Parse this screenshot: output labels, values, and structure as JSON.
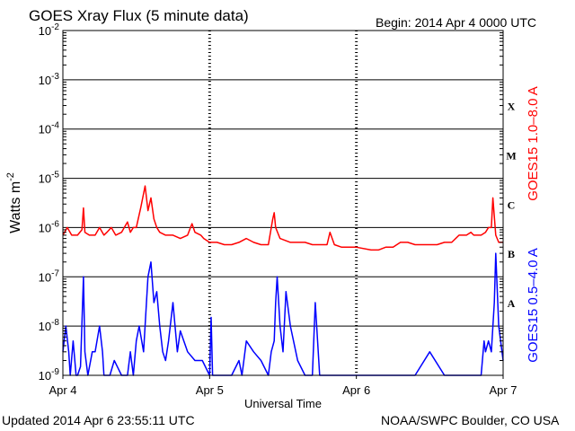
{
  "header": {
    "title": "GOES Xray Flux (5 minute data)",
    "begin": "Begin:  2014 Apr 4 0000 UTC"
  },
  "footer": {
    "updated": "Updated 2014 Apr  6 23:55:11 UTC",
    "credit": "NOAA/SWPC Boulder, CO USA"
  },
  "colors": {
    "long": "#ff0000",
    "short": "#0000ff",
    "axis": "#000000"
  },
  "chart_data": {
    "type": "line",
    "title": "GOES Xray Flux (5 minute data)",
    "ylabel": "Watts m",
    "ylabel_sup": "-2",
    "xlabel": "Universal Time",
    "yscale": "log",
    "ylim": [
      1e-09,
      0.01
    ],
    "xlim": [
      0,
      3
    ],
    "x_unit": "days since 2014 Apr 4 0000 UTC",
    "yticks": [
      {
        "v": 0.01,
        "base": "10",
        "exp": "-2"
      },
      {
        "v": 0.001,
        "base": "10",
        "exp": "-3"
      },
      {
        "v": 0.0001,
        "base": "10",
        "exp": "-4"
      },
      {
        "v": 1e-05,
        "base": "10",
        "exp": "-5"
      },
      {
        "v": 1e-06,
        "base": "10",
        "exp": "-6"
      },
      {
        "v": 1e-07,
        "base": "10",
        "exp": "-7"
      },
      {
        "v": 1e-08,
        "base": "10",
        "exp": "-8"
      },
      {
        "v": 1e-09,
        "base": "10",
        "exp": "-9"
      }
    ],
    "xticks": [
      {
        "x": 0,
        "label": "Apr 4"
      },
      {
        "x": 1,
        "label": "Apr 5"
      },
      {
        "x": 2,
        "label": "Apr 6"
      },
      {
        "x": 3,
        "label": "Apr 7"
      }
    ],
    "flare_classes": [
      {
        "label": "X",
        "v": 0.0003
      },
      {
        "label": "M",
        "v": 3e-05
      },
      {
        "label": "C",
        "v": 3e-06
      },
      {
        "label": "B",
        "v": 3e-07
      },
      {
        "label": "A",
        "v": 3e-08
      }
    ],
    "series": [
      {
        "name": "GOES15 1.0–8.0 A",
        "color": "#ff0000",
        "x": [
          0,
          0.03,
          0.06,
          0.1,
          0.13,
          0.14,
          0.15,
          0.18,
          0.22,
          0.25,
          0.28,
          0.3,
          0.33,
          0.36,
          0.4,
          0.44,
          0.46,
          0.48,
          0.5,
          0.53,
          0.56,
          0.58,
          0.6,
          0.62,
          0.64,
          0.66,
          0.7,
          0.75,
          0.8,
          0.85,
          0.88,
          0.9,
          0.94,
          0.96,
          1.0,
          1.05,
          1.1,
          1.15,
          1.2,
          1.25,
          1.3,
          1.35,
          1.4,
          1.43,
          1.44,
          1.45,
          1.48,
          1.55,
          1.6,
          1.65,
          1.7,
          1.75,
          1.8,
          1.82,
          1.85,
          1.9,
          2.0,
          2.1,
          2.15,
          2.2,
          2.25,
          2.3,
          2.35,
          2.4,
          2.45,
          2.5,
          2.55,
          2.6,
          2.65,
          2.7,
          2.75,
          2.78,
          2.8,
          2.85,
          2.88,
          2.9,
          2.92,
          2.93,
          2.95,
          2.97,
          3.0
        ],
        "y": [
          7e-07,
          1e-06,
          7e-07,
          7e-07,
          9e-07,
          2.5e-06,
          8e-07,
          7e-07,
          7e-07,
          1e-06,
          7e-07,
          8e-07,
          1e-06,
          7e-07,
          8e-07,
          1.3e-06,
          8e-07,
          1e-06,
          1e-06,
          2.5e-06,
          7e-06,
          2.2e-06,
          4e-06,
          1.5e-06,
          1e-06,
          8e-07,
          7e-07,
          7e-07,
          6e-07,
          7e-07,
          1.2e-06,
          8e-07,
          7e-07,
          6e-07,
          5e-07,
          5e-07,
          4.5e-07,
          4.5e-07,
          5e-07,
          6e-07,
          5e-07,
          4.5e-07,
          4.5e-07,
          1.5e-06,
          2e-06,
          1e-06,
          6e-07,
          5e-07,
          5e-07,
          5e-07,
          4.5e-07,
          4.5e-07,
          4.5e-07,
          8e-07,
          4.5e-07,
          4e-07,
          4e-07,
          3.5e-07,
          3.5e-07,
          4e-07,
          4e-07,
          5e-07,
          5e-07,
          4.5e-07,
          4.5e-07,
          4.5e-07,
          4.5e-07,
          5e-07,
          5e-07,
          7e-07,
          7e-07,
          8e-07,
          7e-07,
          7e-07,
          8e-07,
          1e-06,
          1e-06,
          4e-06,
          7e-07,
          5e-07,
          5e-07
        ]
      },
      {
        "name": "GOES15 0.5–4.0 A",
        "color": "#0000ff",
        "x": [
          0,
          0.02,
          0.04,
          0.05,
          0.07,
          0.09,
          0.1,
          0.12,
          0.14,
          0.15,
          0.17,
          0.2,
          0.22,
          0.25,
          0.27,
          0.28,
          0.3,
          0.32,
          0.35,
          0.4,
          0.42,
          0.44,
          0.46,
          0.48,
          0.5,
          0.52,
          0.55,
          0.58,
          0.6,
          0.62,
          0.64,
          0.66,
          0.68,
          0.7,
          0.72,
          0.75,
          0.78,
          0.8,
          0.85,
          0.9,
          0.95,
          1.0,
          1.01,
          1.02,
          1.05,
          1.1,
          1.15,
          1.2,
          1.22,
          1.25,
          1.3,
          1.35,
          1.4,
          1.42,
          1.44,
          1.45,
          1.46,
          1.48,
          1.5,
          1.52,
          1.55,
          1.6,
          1.65,
          1.7,
          1.72,
          1.75,
          1.8,
          1.82,
          1.85,
          1.9,
          2.0,
          2.1,
          2.2,
          2.3,
          2.4,
          2.5,
          2.6,
          2.7,
          2.72,
          2.75,
          2.78,
          2.8,
          2.82,
          2.85,
          2.87,
          2.88,
          2.9,
          2.92,
          2.94,
          2.95,
          2.97,
          3.0
        ],
        "y": [
          3e-09,
          1e-08,
          3e-09,
          1e-09,
          5e-09,
          1e-09,
          1e-09,
          1.5e-09,
          1e-07,
          3e-09,
          1e-09,
          3e-09,
          3e-09,
          1e-08,
          3e-09,
          1e-09,
          1e-09,
          1e-09,
          2e-09,
          1e-09,
          1e-09,
          1e-09,
          3e-09,
          1e-09,
          5e-09,
          1e-08,
          3e-09,
          1e-07,
          2e-07,
          3e-08,
          5e-08,
          1e-08,
          3e-09,
          2e-09,
          5e-09,
          3e-08,
          3e-09,
          8e-09,
          3e-09,
          2e-09,
          2e-09,
          1e-09,
          1.5e-08,
          1e-09,
          1e-09,
          1e-09,
          1e-09,
          2e-09,
          1e-09,
          5e-09,
          3e-09,
          2e-09,
          1e-09,
          3e-09,
          5e-09,
          3e-08,
          1e-07,
          1e-08,
          3e-09,
          5e-08,
          1e-08,
          2e-09,
          1e-09,
          1e-09,
          3e-08,
          1e-09,
          1e-09,
          1e-09,
          1e-09,
          1e-09,
          1e-09,
          1e-09,
          1e-09,
          1e-09,
          1e-09,
          3e-09,
          1e-09,
          1e-09,
          1e-09,
          1e-09,
          1e-09,
          1e-09,
          1e-09,
          1e-09,
          5e-09,
          3e-09,
          5e-09,
          3e-09,
          3e-08,
          3e-07,
          1e-08,
          2e-09
        ]
      }
    ]
  }
}
